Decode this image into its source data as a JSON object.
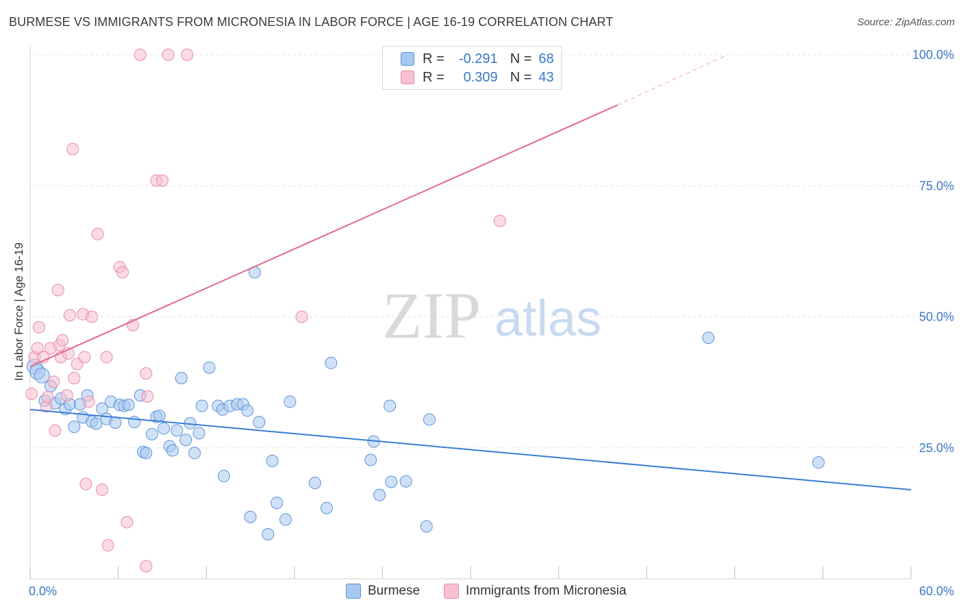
{
  "title": "BURMESE VS IMMIGRANTS FROM MICRONESIA IN LABOR FORCE | AGE 16-19 CORRELATION CHART",
  "source": "Source: ZipAtlas.com",
  "watermark": {
    "zip": "ZIP",
    "atlas": "atlas"
  },
  "legend": {
    "rows": [
      {
        "r_label": "R =",
        "r_value": "-0.291",
        "n_label": "N =",
        "n_value": "68"
      },
      {
        "r_label": "R =",
        "r_value": "0.309",
        "n_label": "N =",
        "n_value": "43"
      }
    ]
  },
  "bottom_legend": [
    "Burmese",
    "Immigrants from Micronesia"
  ],
  "colors": {
    "burmese_fill": "#a9c8f0",
    "burmese_stroke": "#5b93d8",
    "burmese_line": "#3a7bd5",
    "micronesia_fill": "#f7bfd0",
    "micronesia_stroke": "#e88aa8",
    "micronesia_line": "#e0698f",
    "axis_label": "#3a78c8",
    "grid": "#e3e3e3"
  },
  "chart_data": {
    "type": "scatter",
    "title": "BURMESE VS IMMIGRANTS FROM MICRONESIA IN LABOR FORCE | AGE 16-19 CORRELATION CHART",
    "xlabel": "",
    "ylabel": "In Labor Force | Age 16-19",
    "xlim": [
      0,
      60
    ],
    "ylim": [
      0,
      102
    ],
    "x_tick_labels": [
      "0.0%",
      "60.0%"
    ],
    "y_ticks": [
      25,
      50,
      75,
      100
    ],
    "y_tick_labels": [
      "25.0%",
      "50.0%",
      "75.0%",
      "100.0%"
    ],
    "series": [
      {
        "name": "Burmese",
        "R": -0.291,
        "N": 68,
        "trend": {
          "x": [
            0,
            60
          ],
          "y": [
            32.3,
            17.0
          ]
        },
        "points": [
          [
            0.3,
            40.5
          ],
          [
            0.5,
            39.5
          ],
          [
            0.8,
            38.8
          ],
          [
            1.0,
            34.0
          ],
          [
            1.4,
            36.8
          ],
          [
            1.7,
            33.5
          ],
          [
            2.1,
            34.4
          ],
          [
            2.4,
            32.4
          ],
          [
            2.7,
            33.3
          ],
          [
            3.0,
            29.0
          ],
          [
            3.4,
            33.3
          ],
          [
            3.6,
            30.8
          ],
          [
            3.9,
            35.0
          ],
          [
            4.2,
            30.0
          ],
          [
            4.5,
            29.6
          ],
          [
            4.9,
            32.5
          ],
          [
            5.2,
            30.5
          ],
          [
            5.5,
            33.8
          ],
          [
            5.8,
            29.8
          ],
          [
            6.1,
            33.2
          ],
          [
            6.4,
            33.0
          ],
          [
            6.7,
            33.2
          ],
          [
            7.1,
            29.9
          ],
          [
            7.5,
            35.0
          ],
          [
            7.7,
            24.2
          ],
          [
            7.9,
            24.0
          ],
          [
            8.3,
            27.6
          ],
          [
            8.6,
            30.9
          ],
          [
            8.8,
            31.1
          ],
          [
            9.1,
            28.7
          ],
          [
            9.5,
            25.3
          ],
          [
            9.7,
            24.5
          ],
          [
            10.0,
            28.3
          ],
          [
            10.3,
            38.3
          ],
          [
            10.6,
            26.5
          ],
          [
            10.9,
            29.7
          ],
          [
            11.2,
            24.0
          ],
          [
            11.5,
            27.8
          ],
          [
            11.7,
            33.0
          ],
          [
            12.2,
            40.3
          ],
          [
            12.8,
            33.0
          ],
          [
            13.1,
            32.3
          ],
          [
            13.2,
            19.6
          ],
          [
            13.6,
            33.0
          ],
          [
            14.1,
            33.3
          ],
          [
            14.5,
            33.3
          ],
          [
            14.8,
            32.1
          ],
          [
            15.0,
            11.8
          ],
          [
            15.3,
            58.5
          ],
          [
            15.6,
            29.9
          ],
          [
            16.2,
            8.5
          ],
          [
            16.5,
            22.5
          ],
          [
            16.8,
            14.5
          ],
          [
            17.4,
            11.3
          ],
          [
            17.7,
            33.8
          ],
          [
            19.4,
            18.3
          ],
          [
            20.2,
            13.5
          ],
          [
            20.5,
            41.2
          ],
          [
            23.2,
            22.7
          ],
          [
            23.4,
            26.2
          ],
          [
            23.8,
            16.0
          ],
          [
            24.5,
            33.0
          ],
          [
            24.6,
            18.5
          ],
          [
            25.6,
            18.6
          ],
          [
            27.0,
            10.0
          ],
          [
            27.2,
            30.4
          ],
          [
            46.2,
            46.0
          ],
          [
            53.7,
            22.2
          ]
        ]
      },
      {
        "name": "Immigrants from Micronesia",
        "R": 0.309,
        "N": 43,
        "trend": {
          "x": [
            0,
            40
          ],
          "y": [
            40.5,
            90.4
          ]
        },
        "trend_dashed": {
          "x": [
            40,
            47.5
          ],
          "y": [
            90.4,
            100.0
          ]
        },
        "points": [
          [
            0.1,
            35.3
          ],
          [
            0.3,
            42.3
          ],
          [
            0.5,
            44.0
          ],
          [
            0.6,
            48.0
          ],
          [
            0.9,
            42.3
          ],
          [
            1.1,
            32.9
          ],
          [
            1.2,
            34.7
          ],
          [
            1.4,
            44.0
          ],
          [
            1.6,
            37.6
          ],
          [
            1.7,
            28.3
          ],
          [
            1.9,
            55.1
          ],
          [
            2.0,
            44.6
          ],
          [
            2.1,
            42.3
          ],
          [
            2.2,
            45.5
          ],
          [
            2.5,
            35.0
          ],
          [
            2.6,
            43.0
          ],
          [
            2.7,
            50.3
          ],
          [
            2.9,
            82.0
          ],
          [
            3.0,
            38.3
          ],
          [
            3.2,
            41.0
          ],
          [
            3.6,
            50.5
          ],
          [
            3.7,
            42.3
          ],
          [
            3.8,
            18.1
          ],
          [
            4.0,
            33.8
          ],
          [
            4.2,
            50.0
          ],
          [
            4.6,
            65.8
          ],
          [
            4.9,
            17.0
          ],
          [
            5.2,
            42.3
          ],
          [
            5.3,
            6.4
          ],
          [
            6.1,
            59.5
          ],
          [
            6.3,
            58.5
          ],
          [
            6.6,
            10.8
          ],
          [
            7.0,
            48.4
          ],
          [
            7.5,
            100.0
          ],
          [
            7.9,
            2.4
          ],
          [
            7.9,
            39.2
          ],
          [
            8.0,
            34.8
          ],
          [
            8.6,
            76.0
          ],
          [
            9.0,
            76.0
          ],
          [
            9.4,
            100.0
          ],
          [
            10.7,
            100.0
          ],
          [
            18.5,
            50.0
          ],
          [
            32.0,
            68.3
          ]
        ]
      }
    ]
  }
}
